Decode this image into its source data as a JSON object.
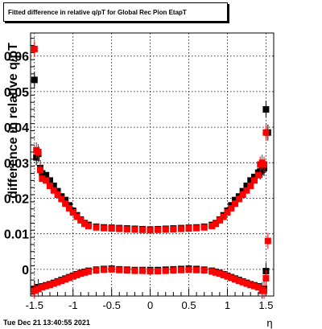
{
  "chart_data": {
    "type": "scatter",
    "title": "Fitted difference in relative q/pT for Global Rec Pion EtapT",
    "xlabel": "η",
    "ylabel": "difference in relative q/pT",
    "xlim": [
      -1.55,
      1.6
    ],
    "ylim": [
      -0.0075,
      0.0665
    ],
    "grid": true,
    "x_ticks": [
      -1.5,
      -1,
      -0.5,
      0,
      0.5,
      1,
      1.5
    ],
    "x_tick_labels": [
      "-1.5",
      "-1",
      "-0.5",
      "0",
      "0.5",
      "1",
      "1.5"
    ],
    "y_ticks": [
      0,
      0.01,
      0.02,
      0.03,
      0.04,
      0.05,
      0.06
    ],
    "y_tick_labels": [
      "0",
      "0.01",
      "0.02",
      "0.03",
      "0.04",
      "0.05",
      "0.06"
    ],
    "series": [
      {
        "color": "#000000",
        "x": [
          -1.5,
          -1.475,
          -1.45,
          -1.425,
          -1.4,
          -1.35,
          -1.3,
          -1.25,
          -1.2,
          -1.15,
          -1.1,
          -1.05,
          -1,
          -0.95,
          -0.9,
          -0.85,
          -0.8,
          -0.7,
          -0.6,
          -0.5,
          -0.4,
          -0.3,
          -0.2,
          -0.1,
          0,
          0.1,
          0.2,
          0.3,
          0.4,
          0.5,
          0.6,
          0.7,
          0.8,
          0.85,
          0.9,
          0.95,
          1,
          1.05,
          1.1,
          1.15,
          1.2,
          1.25,
          1.3,
          1.35,
          1.4,
          1.425,
          1.45,
          1.475,
          1.5,
          1.525
        ],
        "y": [
          0.0533,
          0.0315,
          0.0325,
          0.0285,
          0.027,
          0.0265,
          0.025,
          0.0235,
          0.022,
          0.0205,
          0.0195,
          0.018,
          0.0165,
          0.0152,
          0.014,
          0.013,
          0.0125,
          0.012,
          0.0118,
          0.0117,
          0.0116,
          0.0115,
          0.0114,
          0.0113,
          0.0112,
          0.0113,
          0.0114,
          0.0115,
          0.0116,
          0.0117,
          0.0118,
          0.012,
          0.0125,
          0.013,
          0.014,
          0.0152,
          0.0165,
          0.018,
          0.0195,
          0.0205,
          0.022,
          0.0235,
          0.025,
          0.026,
          0.0272,
          0.0275,
          0.028,
          0.0285,
          0.045,
          0.0385
        ]
      },
      {
        "color": "#ff0000",
        "x": [
          -1.5,
          -1.475,
          -1.45,
          -1.425,
          -1.4,
          -1.35,
          -1.3,
          -1.25,
          -1.2,
          -1.15,
          -1.1,
          -1.05,
          -1,
          -0.95,
          -0.9,
          -0.85,
          -0.8,
          -0.7,
          -0.6,
          -0.5,
          -0.4,
          -0.3,
          -0.2,
          -0.1,
          0,
          0.1,
          0.2,
          0.3,
          0.4,
          0.5,
          0.6,
          0.7,
          0.8,
          0.85,
          0.9,
          0.95,
          1,
          1.05,
          1.1,
          1.15,
          1.2,
          1.25,
          1.3,
          1.35,
          1.4,
          1.425,
          1.45,
          1.475,
          1.5,
          1.525
        ],
        "y": [
          0.062,
          0.0335,
          0.033,
          0.028,
          0.0255,
          0.025,
          0.0235,
          0.0222,
          0.021,
          0.0198,
          0.0185,
          0.0172,
          0.016,
          0.0148,
          0.0138,
          0.0128,
          0.0122,
          0.0118,
          0.0116,
          0.0115,
          0.0114,
          0.0113,
          0.0112,
          0.0111,
          0.011,
          0.0111,
          0.0112,
          0.0113,
          0.0114,
          0.0115,
          0.0116,
          0.0118,
          0.0122,
          0.0128,
          0.0138,
          0.0148,
          0.016,
          0.0172,
          0.0185,
          0.0198,
          0.021,
          0.0222,
          0.0235,
          0.025,
          0.0265,
          0.0295,
          0.03,
          0.0295,
          0.0385,
          0.008
        ]
      },
      {
        "color": "#000000",
        "x": [
          -1.5,
          -1.45,
          -1.4,
          -1.35,
          -1.3,
          -1.25,
          -1.2,
          -1.15,
          -1.1,
          -1.05,
          -1,
          -0.95,
          -0.9,
          -0.85,
          -0.8,
          -0.7,
          -0.6,
          -0.5,
          -0.4,
          -0.3,
          -0.2,
          -0.1,
          0,
          0.1,
          0.2,
          0.3,
          0.4,
          0.5,
          0.6,
          0.7,
          0.8,
          0.85,
          0.9,
          0.95,
          1,
          1.05,
          1.1,
          1.15,
          1.2,
          1.25,
          1.3,
          1.35,
          1.4,
          1.45,
          1.475,
          1.5
        ],
        "y": [
          -0.0055,
          -0.005,
          -0.0048,
          -0.0045,
          -0.0042,
          -0.0038,
          -0.0034,
          -0.003,
          -0.0026,
          -0.0022,
          -0.0018,
          -0.0014,
          -0.001,
          -0.0007,
          -0.0004,
          -0.0001,
          0.0001,
          0.0002,
          0.0,
          -0.0001,
          -0.0002,
          -0.0002,
          -0.0002,
          -0.0002,
          -0.0001,
          0.0,
          0.0001,
          0.0002,
          0.0001,
          -0.0001,
          -0.0004,
          -0.0007,
          -0.001,
          -0.0014,
          -0.0018,
          -0.0022,
          -0.0026,
          -0.003,
          -0.0034,
          -0.0038,
          -0.0042,
          -0.0045,
          -0.0048,
          -0.006,
          -0.0055,
          -0.0005
        ]
      },
      {
        "color": "#ff0000",
        "x": [
          -1.5,
          -1.45,
          -1.4,
          -1.35,
          -1.3,
          -1.25,
          -1.2,
          -1.15,
          -1.1,
          -1.05,
          -1,
          -0.95,
          -0.9,
          -0.85,
          -0.8,
          -0.7,
          -0.6,
          -0.5,
          -0.4,
          -0.3,
          -0.2,
          -0.1,
          0,
          0.1,
          0.2,
          0.3,
          0.4,
          0.5,
          0.6,
          0.7,
          0.8,
          0.85,
          0.9,
          0.95,
          1,
          1.05,
          1.1,
          1.15,
          1.2,
          1.25,
          1.3,
          1.35,
          1.4,
          1.45,
          1.475,
          1.5
        ],
        "y": [
          -0.006,
          -0.0055,
          -0.005,
          -0.0047,
          -0.0044,
          -0.004,
          -0.0036,
          -0.0032,
          -0.0028,
          -0.0024,
          -0.002,
          -0.0016,
          -0.0012,
          -0.0009,
          -0.0006,
          -0.0003,
          -0.0001,
          0.0,
          -0.0002,
          -0.0003,
          -0.0004,
          -0.0004,
          -0.0005,
          -0.0005,
          -0.0004,
          -0.0003,
          -0.0002,
          -0.0001,
          -0.0002,
          -0.0003,
          -0.0006,
          -0.0009,
          -0.0012,
          -0.0016,
          -0.002,
          -0.0024,
          -0.0028,
          -0.0032,
          -0.0036,
          -0.004,
          -0.0044,
          -0.0047,
          -0.005,
          -0.0058,
          -0.006,
          -0.0025
        ]
      }
    ]
  },
  "footer": {
    "timestamp": "Tue Dec 21 13:40:55 2021"
  }
}
